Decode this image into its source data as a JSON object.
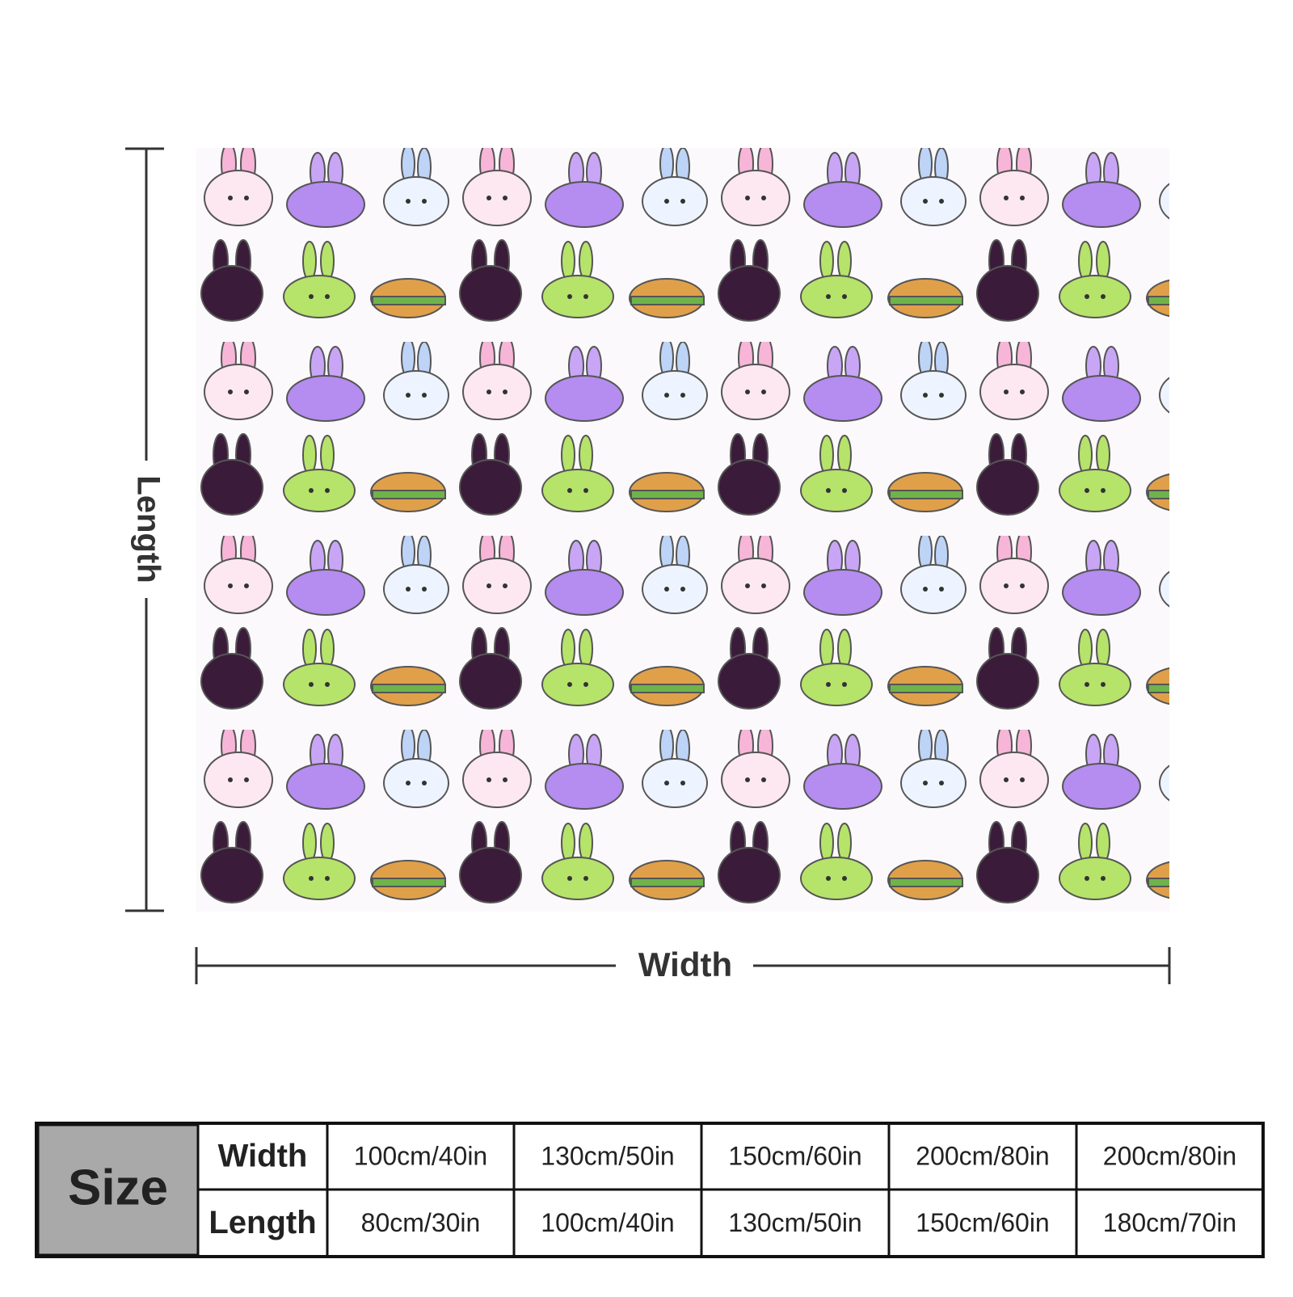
{
  "labels": {
    "length": "Length",
    "width": "Width"
  },
  "table": {
    "title": "Size",
    "rows": [
      {
        "header": "Width",
        "cells": [
          "100cm/40in",
          "130cm/50in",
          "150cm/60in",
          "200cm/80in",
          "200cm/80in"
        ]
      },
      {
        "header": "Length",
        "cells": [
          "80cm/30in",
          "100cm/40in",
          "130cm/50in",
          "150cm/60in",
          "180cm/70in"
        ]
      }
    ]
  }
}
